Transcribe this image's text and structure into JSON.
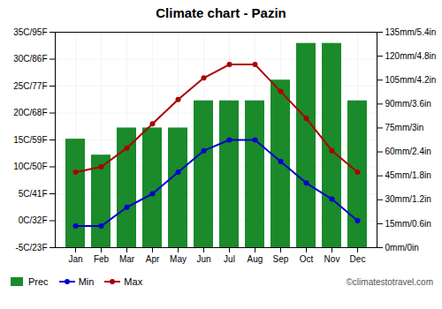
{
  "chart_data": {
    "type": "bar",
    "title": "Climate chart - Pazin",
    "categories": [
      "Jan",
      "Feb",
      "Mar",
      "Apr",
      "May",
      "Jun",
      "Jul",
      "Aug",
      "Sep",
      "Oct",
      "Nov",
      "Dec"
    ],
    "series": [
      {
        "name": "Prec",
        "type": "bar",
        "axis": "y2",
        "color": "#1a8a2a",
        "values": [
          68,
          58,
          75,
          75,
          75,
          92,
          92,
          92,
          105,
          128,
          128,
          92
        ]
      },
      {
        "name": "Min",
        "type": "line",
        "color": "#0000cc",
        "marker": "circle",
        "values": [
          -1.0,
          -1.0,
          2.5,
          5.0,
          9.0,
          13.0,
          15.0,
          15.0,
          11.0,
          7.0,
          4.0,
          0.0
        ]
      },
      {
        "name": "Max",
        "type": "line",
        "color": "#aa0000",
        "marker": "circle",
        "values": [
          9.0,
          10.0,
          13.5,
          18.0,
          22.5,
          26.5,
          29.0,
          29.0,
          24.0,
          19.0,
          13.0,
          9.0
        ]
      }
    ],
    "ylim": [
      -5,
      35
    ],
    "yticks": [
      {
        "value": -5,
        "label": "-5C/23F"
      },
      {
        "value": 0,
        "label": "0C/32F"
      },
      {
        "value": 5,
        "label": "5C/41F"
      },
      {
        "value": 10,
        "label": "10C/50F"
      },
      {
        "value": 15,
        "label": "15C/59F"
      },
      {
        "value": 20,
        "label": "20C/68F"
      },
      {
        "value": 25,
        "label": "25C/77F"
      },
      {
        "value": 30,
        "label": "30C/86F"
      },
      {
        "value": 35,
        "label": "35C/95F"
      }
    ],
    "y2lim": [
      0,
      135
    ],
    "y2ticks": [
      {
        "value": 0,
        "label": "0mm/0in"
      },
      {
        "value": 15,
        "label": "15mm/0.6in"
      },
      {
        "value": 30,
        "label": "30mm/1.2in"
      },
      {
        "value": 45,
        "label": "45mm/1.8in"
      },
      {
        "value": 60,
        "label": "60mm/2.4in"
      },
      {
        "value": 75,
        "label": "75mm/3in"
      },
      {
        "value": 90,
        "label": "90mm/3.6in"
      },
      {
        "value": 105,
        "label": "105mm/4.2in"
      },
      {
        "value": 120,
        "label": "120mm/4.8in"
      },
      {
        "value": 135,
        "label": "135mm/5.4in"
      }
    ],
    "grid": true,
    "legend": "lower left",
    "annotations": [
      "©climatestotravel.com"
    ]
  }
}
